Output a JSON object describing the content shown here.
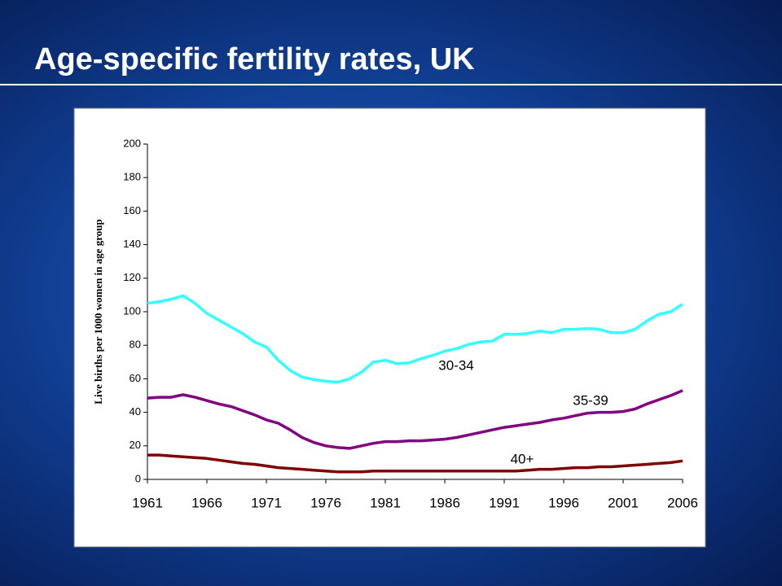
{
  "title": "Age-specific fertility rates, UK",
  "chart_data": {
    "type": "line",
    "y_axis_label": "Live births per 1000 women in age group",
    "x": [
      1961,
      1962,
      1963,
      1964,
      1965,
      1966,
      1967,
      1968,
      1969,
      1970,
      1971,
      1972,
      1973,
      1974,
      1975,
      1976,
      1977,
      1978,
      1979,
      1980,
      1981,
      1982,
      1983,
      1984,
      1985,
      1986,
      1987,
      1988,
      1989,
      1990,
      1991,
      1992,
      1993,
      1994,
      1995,
      1996,
      1997,
      1998,
      1999,
      2000,
      2001,
      2002,
      2003,
      2004,
      2005,
      2006
    ],
    "series": [
      {
        "name": "30-34",
        "color": "#33ffff",
        "values": [
          105,
          106,
          107.5,
          109.5,
          105,
          99,
          95,
          91,
          87,
          82,
          79,
          71,
          65,
          61,
          59.5,
          58.5,
          58,
          60,
          64,
          70,
          71,
          69,
          69.5,
          72,
          74,
          76.5,
          78,
          80.5,
          82,
          82.5,
          86.5,
          86.5,
          87,
          88.5,
          87.5,
          89.5,
          89.5,
          90,
          89.5,
          87.5,
          87.5,
          89.5,
          94.5,
          98.5,
          100,
          104.5
        ]
      },
      {
        "name": "35-39",
        "color": "#800080",
        "values": [
          48.5,
          49,
          49,
          50.5,
          49,
          47,
          45,
          43.5,
          41,
          38.5,
          35.5,
          33.5,
          29.5,
          25,
          22,
          20,
          19,
          18.5,
          20,
          21.5,
          22.5,
          22.5,
          23,
          23,
          23.5,
          24,
          25,
          26.5,
          28,
          29.5,
          31,
          32,
          33,
          34,
          35.5,
          36.5,
          38,
          39.5,
          40,
          40,
          40.5,
          42,
          45,
          47.5,
          50,
          53
        ]
      },
      {
        "name": "40+",
        "color": "#7f0000",
        "values": [
          14.5,
          14.5,
          14,
          13.5,
          13,
          12.5,
          11.5,
          10.5,
          9.5,
          9,
          8,
          7,
          6.5,
          6,
          5.5,
          5,
          4.5,
          4.5,
          4.5,
          5,
          5,
          5,
          5,
          5,
          5,
          5,
          5,
          5,
          5,
          5,
          5,
          5,
          5.5,
          6,
          6,
          6.5,
          7,
          7,
          7.5,
          7.5,
          8,
          8.5,
          9,
          9.5,
          10,
          11
        ]
      }
    ],
    "xlim": [
      1961,
      2006
    ],
    "xticks": [
      1961,
      1966,
      1971,
      1976,
      1981,
      1986,
      1991,
      1996,
      2001,
      2006
    ],
    "ylim": [
      0,
      200
    ],
    "yticks": [
      0,
      20,
      40,
      60,
      80,
      100,
      120,
      140,
      160,
      180,
      200
    ],
    "grid": false,
    "legend": "inline"
  }
}
